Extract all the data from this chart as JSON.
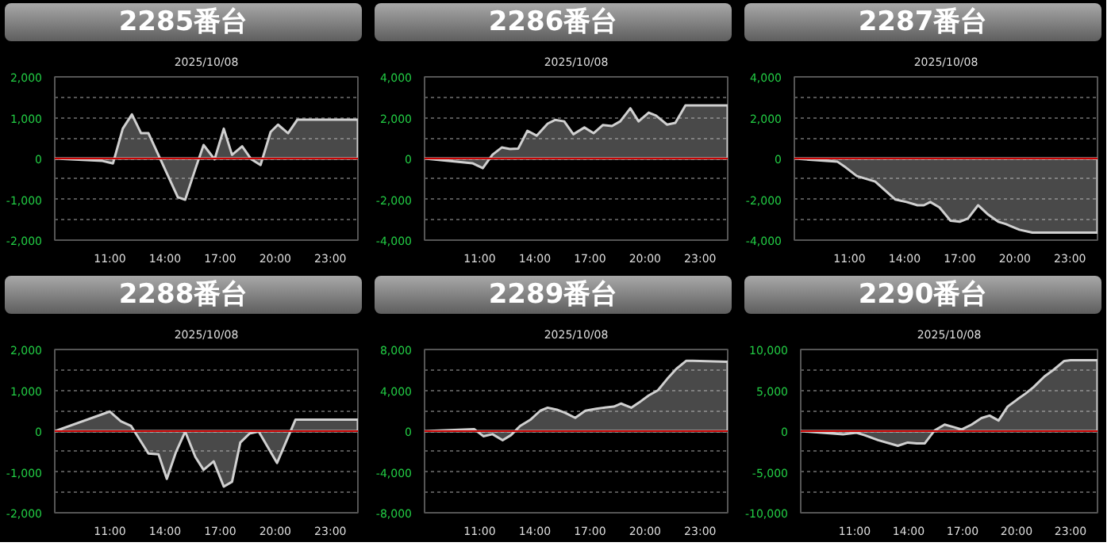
{
  "chart_data": [
    {
      "type": "area",
      "title": "2285番台",
      "subtitle": "2025/10/08",
      "color": "#d0d0d0",
      "grid": "y",
      "xlim": [
        8,
        24.5
      ],
      "ylim": [
        -2000,
        2000
      ],
      "xticks": [
        {
          "value": 11,
          "label": "11:00"
        },
        {
          "value": 14,
          "label": "14:00"
        },
        {
          "value": 17,
          "label": "17:00"
        },
        {
          "value": 20,
          "label": "20:00"
        },
        {
          "value": 23,
          "label": "23:00"
        }
      ],
      "yticks": [
        {
          "value": -2000,
          "label": "-2,000"
        },
        {
          "value": -1500,
          "label": null
        },
        {
          "value": -1000,
          "label": "-1,000"
        },
        {
          "value": -500,
          "label": null
        },
        0,
        {
          "value": 500,
          "label": null
        },
        {
          "value": 1000,
          "label": "1,000"
        },
        {
          "value": 1500,
          "label": null
        },
        {
          "value": 2000,
          "label": "2,000"
        }
      ],
      "ref_lines": [
        {
          "axis": "y",
          "value": 0,
          "color": "#cc0000"
        }
      ],
      "x": [
        8,
        10.6,
        11.17,
        11.7,
        12.2,
        12.7,
        13.1,
        13.7,
        14.7,
        15.1,
        15.65,
        16.1,
        16.7,
        17.2,
        17.65,
        18.2,
        18.7,
        19.2,
        19.75,
        20.15,
        20.7,
        21.2,
        24.5
      ],
      "values": [
        0,
        -60,
        -120,
        730,
        1080,
        620,
        620,
        30,
        -950,
        -1010,
        -260,
        330,
        -20,
        730,
        90,
        300,
        -20,
        -160,
        650,
        830,
        620,
        950,
        950
      ]
    },
    {
      "type": "area",
      "title": "2286番台",
      "subtitle": "2025/10/08",
      "color": "#d0d0d0",
      "grid": "y",
      "xlim": [
        8,
        24.5
      ],
      "ylim": [
        -4000,
        4000
      ],
      "xticks": [
        {
          "value": 11,
          "label": "11:00"
        },
        {
          "value": 14,
          "label": "14:00"
        },
        {
          "value": 17,
          "label": "17:00"
        },
        {
          "value": 20,
          "label": "20:00"
        },
        {
          "value": 23,
          "label": "23:00"
        }
      ],
      "yticks": [
        {
          "value": -4000,
          "label": "-4,000"
        },
        {
          "value": -3000,
          "label": null
        },
        {
          "value": -2000,
          "label": "-2,000"
        },
        {
          "value": -1000,
          "label": null
        },
        0,
        {
          "value": 1000,
          "label": null
        },
        {
          "value": 2000,
          "label": "2,000"
        },
        {
          "value": 3000,
          "label": null
        },
        {
          "value": 4000,
          "label": "4,000"
        }
      ],
      "ref_lines": [
        {
          "axis": "y",
          "value": 0,
          "color": "#cc0000"
        }
      ],
      "x": [
        8,
        10.6,
        11.17,
        11.7,
        12.2,
        12.65,
        13.1,
        13.6,
        14.1,
        14.7,
        15.1,
        15.6,
        16.1,
        16.7,
        17.2,
        17.7,
        18.2,
        18.65,
        19.2,
        19.65,
        20.2,
        20.6,
        21.2,
        21.65,
        22.2,
        24.5
      ],
      "values": [
        0,
        -230,
        -470,
        190,
        540,
        470,
        490,
        1360,
        1120,
        1710,
        1890,
        1820,
        1190,
        1520,
        1240,
        1640,
        1590,
        1820,
        2460,
        1820,
        2250,
        2100,
        1660,
        1750,
        2600,
        2600
      ]
    },
    {
      "type": "area",
      "title": "2287番台",
      "subtitle": "2025/10/08",
      "color": "#d0d0d0",
      "grid": "y",
      "xlim": [
        8,
        24.5
      ],
      "ylim": [
        -4000,
        4000
      ],
      "xticks": [
        {
          "value": 11,
          "label": "11:00"
        },
        {
          "value": 14,
          "label": "14:00"
        },
        {
          "value": 17,
          "label": "17:00"
        },
        {
          "value": 20,
          "label": "20:00"
        },
        {
          "value": 23,
          "label": "23:00"
        }
      ],
      "yticks": [
        {
          "value": -4000,
          "label": "-4,000"
        },
        {
          "value": -3000,
          "label": null
        },
        {
          "value": -2000,
          "label": "-2,000"
        },
        {
          "value": -1000,
          "label": null
        },
        0,
        {
          "value": 1000,
          "label": null
        },
        {
          "value": 2000,
          "label": "2,000"
        },
        {
          "value": 3000,
          "label": null
        },
        {
          "value": 4000,
          "label": "4,000"
        }
      ],
      "ref_lines": [
        {
          "axis": "y",
          "value": 0,
          "color": "#cc0000"
        }
      ],
      "x": [
        8,
        10.35,
        10.8,
        11.4,
        12.4,
        13.5,
        14.1,
        14.7,
        15.05,
        15.4,
        15.9,
        16.5,
        17.0,
        17.45,
        18.0,
        18.55,
        19.1,
        19.5,
        20.25,
        20.95,
        24.5
      ],
      "values": [
        0,
        -160,
        -440,
        -860,
        -1130,
        -2010,
        -2130,
        -2290,
        -2290,
        -2130,
        -2400,
        -3050,
        -3100,
        -2940,
        -2290,
        -2750,
        -3100,
        -3210,
        -3490,
        -3630,
        -3630
      ]
    },
    {
      "type": "area",
      "title": "2288番台",
      "subtitle": "2025/10/08",
      "color": "#d0d0d0",
      "grid": "y",
      "xlim": [
        8,
        24.5
      ],
      "ylim": [
        -2000,
        2000
      ],
      "xticks": [
        {
          "value": 11,
          "label": "11:00"
        },
        {
          "value": 14,
          "label": "14:00"
        },
        {
          "value": 17,
          "label": "17:00"
        },
        {
          "value": 20,
          "label": "20:00"
        },
        {
          "value": 23,
          "label": "23:00"
        }
      ],
      "yticks": [
        {
          "value": -2000,
          "label": "-2,000"
        },
        {
          "value": -1500,
          "label": null
        },
        {
          "value": -1000,
          "label": "-1,000"
        },
        {
          "value": -500,
          "label": null
        },
        0,
        {
          "value": 500,
          "label": null
        },
        {
          "value": 1000,
          "label": "1,000"
        },
        {
          "value": 1500,
          "label": null
        },
        {
          "value": 2000,
          "label": "2,000"
        }
      ],
      "ref_lines": [
        {
          "axis": "y",
          "value": 0,
          "color": "#cc0000"
        }
      ],
      "x": [
        8,
        11,
        11.6,
        12.15,
        13.1,
        13.65,
        14.1,
        14.6,
        15.1,
        15.65,
        16.1,
        16.65,
        17.2,
        17.65,
        18.1,
        18.6,
        19.1,
        20.1,
        21.1,
        24.5
      ],
      "values": [
        0,
        480,
        240,
        130,
        -550,
        -570,
        -1170,
        -510,
        -10,
        -630,
        -950,
        -740,
        -1360,
        -1240,
        -280,
        -60,
        -10,
        -780,
        280,
        280
      ]
    },
    {
      "type": "area",
      "title": "2289番台",
      "subtitle": "2025/10/08",
      "color": "#d0d0d0",
      "grid": "y",
      "xlim": [
        8,
        24.5
      ],
      "ylim": [
        -8000,
        8000
      ],
      "xticks": [
        {
          "value": 11,
          "label": "11:00"
        },
        {
          "value": 14,
          "label": "14:00"
        },
        {
          "value": 17,
          "label": "17:00"
        },
        {
          "value": 20,
          "label": "20:00"
        },
        {
          "value": 23,
          "label": "23:00"
        }
      ],
      "yticks": [
        {
          "value": -8000,
          "label": "-8,000"
        },
        {
          "value": -6000,
          "label": null
        },
        {
          "value": -4000,
          "label": "-4,000"
        },
        {
          "value": -2000,
          "label": null
        },
        0,
        {
          "value": 2000,
          "label": null
        },
        {
          "value": 4000,
          "label": "4,000"
        },
        {
          "value": 6000,
          "label": null
        },
        {
          "value": 8000,
          "label": "8,000"
        }
      ],
      "ref_lines": [
        {
          "axis": "y",
          "value": 0,
          "color": "#cc0000"
        }
      ],
      "x": [
        8,
        10.7,
        11.2,
        11.7,
        12.25,
        12.7,
        13.2,
        13.75,
        14.3,
        14.7,
        15.2,
        15.65,
        16.2,
        16.75,
        17.35,
        17.75,
        18.3,
        18.7,
        19.25,
        19.75,
        20.2,
        20.7,
        21.2,
        21.7,
        22.25,
        22.6,
        24.5
      ],
      "values": [
        0,
        200,
        -500,
        -300,
        -900,
        -400,
        500,
        1100,
        2000,
        2300,
        2100,
        1800,
        1300,
        2000,
        2200,
        2300,
        2400,
        2700,
        2300,
        2900,
        3500,
        4000,
        5100,
        6100,
        6900,
        6900,
        6800
      ]
    },
    {
      "type": "area",
      "title": "2290番台",
      "subtitle": "2025/10/08",
      "color": "#d0d0d0",
      "grid": "y",
      "xlim": [
        8,
        24.5
      ],
      "ylim": [
        -10000,
        10000
      ],
      "xticks": [
        {
          "value": 11,
          "label": "11:00"
        },
        {
          "value": 14,
          "label": "14:00"
        },
        {
          "value": 17,
          "label": "17:00"
        },
        {
          "value": 20,
          "label": "20:00"
        },
        {
          "value": 23,
          "label": "23:00"
        }
      ],
      "yticks": [
        {
          "value": -10000,
          "label": "-10,000"
        },
        {
          "value": -7500,
          "label": null
        },
        {
          "value": -5000,
          "label": "-5,000"
        },
        {
          "value": -2500,
          "label": null
        },
        0,
        {
          "value": 2500,
          "label": null
        },
        {
          "value": 5000,
          "label": "5,000"
        },
        {
          "value": 7500,
          "label": null
        },
        {
          "value": 10000,
          "label": "10,000"
        }
      ],
      "ref_lines": [
        {
          "axis": "y",
          "value": 0,
          "color": "#cc0000"
        }
      ],
      "x": [
        8,
        10.35,
        11.1,
        11.55,
        12.3,
        13.4,
        13.95,
        14.45,
        14.9,
        15.45,
        16.0,
        16.5,
        16.95,
        17.5,
        18.05,
        18.5,
        19.0,
        19.5,
        20.05,
        20.5,
        20.95,
        21.55,
        22.05,
        22.65,
        23.0,
        24.5
      ],
      "values": [
        0,
        -400,
        -200,
        -500,
        -1100,
        -1800,
        -1400,
        -1500,
        -1500,
        100,
        800,
        500,
        200,
        800,
        1600,
        1900,
        1300,
        3000,
        3900,
        4600,
        5400,
        6700,
        7500,
        8600,
        8700,
        8700
      ]
    }
  ]
}
